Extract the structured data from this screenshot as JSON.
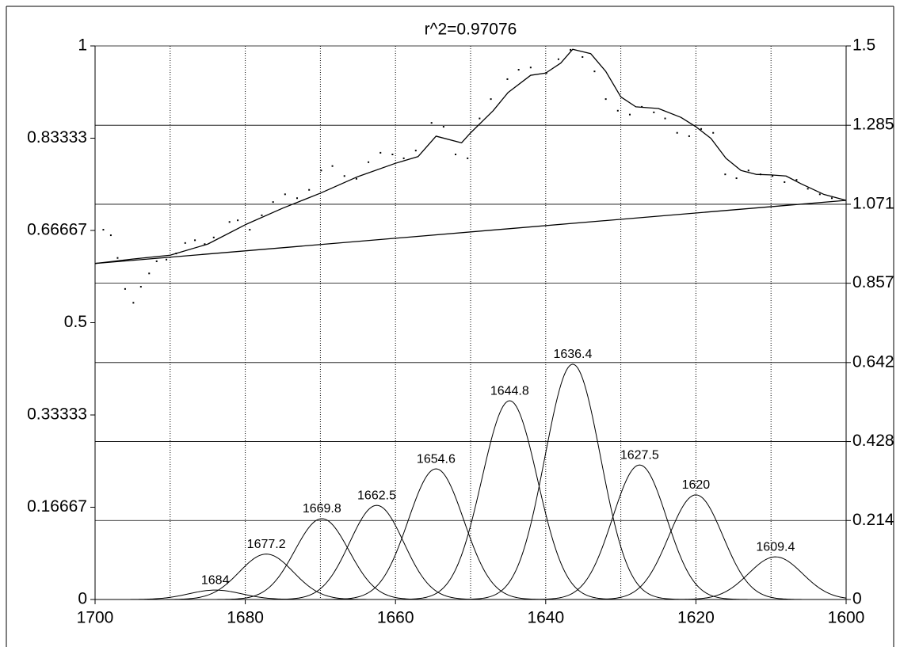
{
  "chart_data": {
    "type": "line",
    "title": "r^2=0.97076",
    "xlim": [
      1700,
      1600
    ],
    "xticks": [
      1700,
      1680,
      1660,
      1640,
      1620,
      1600
    ],
    "xgrid": [
      1690,
      1680,
      1670,
      1660,
      1650,
      1640,
      1630,
      1620,
      1610
    ],
    "ylim": [
      0,
      1
    ],
    "yticks": [
      0,
      0.16667,
      0.33333,
      0.5,
      0.66667,
      0.83333,
      1
    ],
    "y2lim": [
      0,
      1.5
    ],
    "y2ticks": [
      0,
      0.214,
      0.428,
      0.642,
      0.857,
      1.071,
      1.285,
      1.5
    ],
    "color": "#000000",
    "observed": {
      "x": [
        1698.9,
        1697.9,
        1697.0,
        1696.0,
        1694.9,
        1693.9,
        1692.8,
        1691.8,
        1690.5,
        1689.2,
        1688.0,
        1686.7,
        1685.4,
        1684.2,
        1682.1,
        1681.0,
        1679.4,
        1677.8,
        1676.3,
        1674.7,
        1673.1,
        1671.5,
        1669.9,
        1668.4,
        1666.8,
        1665.2,
        1663.6,
        1662.0,
        1660.4,
        1658.9,
        1657.3,
        1655.2,
        1653.6,
        1652.0,
        1650.4,
        1648.8,
        1647.3,
        1645.1,
        1643.6,
        1642.0,
        1639.9,
        1638.3,
        1636.7,
        1635.1,
        1633.5,
        1632.0,
        1630.4,
        1628.8,
        1627.2,
        1625.6,
        1624.1,
        1622.5,
        1620.9,
        1619.3,
        1617.7,
        1616.1,
        1614.6,
        1613.0,
        1611.4,
        1609.8,
        1608.2,
        1606.6,
        1605.1,
        1603.5,
        1601.9
      ],
      "y": [
        0.668,
        0.658,
        0.617,
        0.561,
        0.536,
        0.565,
        0.589,
        0.611,
        0.614,
        0.625,
        0.644,
        0.649,
        0.642,
        0.654,
        0.682,
        0.685,
        0.668,
        0.694,
        0.718,
        0.732,
        0.725,
        0.74,
        0.775,
        0.783,
        0.765,
        0.76,
        0.79,
        0.807,
        0.804,
        0.797,
        0.811,
        0.861,
        0.854,
        0.804,
        0.797,
        0.869,
        0.904,
        0.94,
        0.957,
        0.961,
        0.951,
        0.976,
        0.993,
        0.98,
        0.954,
        0.904,
        0.883,
        0.876,
        0.89,
        0.88,
        0.869,
        0.843,
        0.837,
        0.85,
        0.843,
        0.768,
        0.761,
        0.775,
        0.768,
        0.765,
        0.754,
        0.758,
        0.742,
        0.732,
        0.725
      ]
    },
    "fit": {
      "x": [
        1700,
        1695,
        1690,
        1685,
        1680,
        1675,
        1670,
        1665,
        1660,
        1657,
        1654.6,
        1651.2,
        1650,
        1647,
        1645,
        1642,
        1640,
        1638,
        1636.4,
        1634,
        1632,
        1630,
        1628,
        1625,
        1622,
        1620,
        1618,
        1616,
        1614,
        1612,
        1610,
        1608,
        1606,
        1603,
        1600
      ],
      "y": [
        0.607,
        0.615,
        0.622,
        0.642,
        0.677,
        0.707,
        0.734,
        0.764,
        0.788,
        0.8,
        0.837,
        0.825,
        0.843,
        0.883,
        0.916,
        0.947,
        0.951,
        0.969,
        0.994,
        0.986,
        0.954,
        0.908,
        0.89,
        0.887,
        0.871,
        0.854,
        0.833,
        0.797,
        0.775,
        0.768,
        0.767,
        0.765,
        0.751,
        0.732,
        0.721
      ]
    },
    "baseline": {
      "x": [
        1700,
        1600
      ],
      "y": [
        0.607,
        0.721
      ]
    },
    "peaks": [
      {
        "center": 1684,
        "height": 0.017,
        "sigma": 3.5
      },
      {
        "center": 1677.2,
        "height": 0.082,
        "sigma": 3.6
      },
      {
        "center": 1669.8,
        "height": 0.146,
        "sigma": 3.6
      },
      {
        "center": 1662.5,
        "height": 0.17,
        "sigma": 3.6
      },
      {
        "center": 1654.6,
        "height": 0.236,
        "sigma": 3.7
      },
      {
        "center": 1644.8,
        "height": 0.359,
        "sigma": 3.7
      },
      {
        "center": 1636.4,
        "height": 0.425,
        "sigma": 3.7
      },
      {
        "center": 1627.5,
        "height": 0.243,
        "sigma": 3.6
      },
      {
        "center": 1620,
        "height": 0.189,
        "sigma": 3.6
      },
      {
        "center": 1609.4,
        "height": 0.077,
        "sigma": 3.6
      }
    ]
  }
}
